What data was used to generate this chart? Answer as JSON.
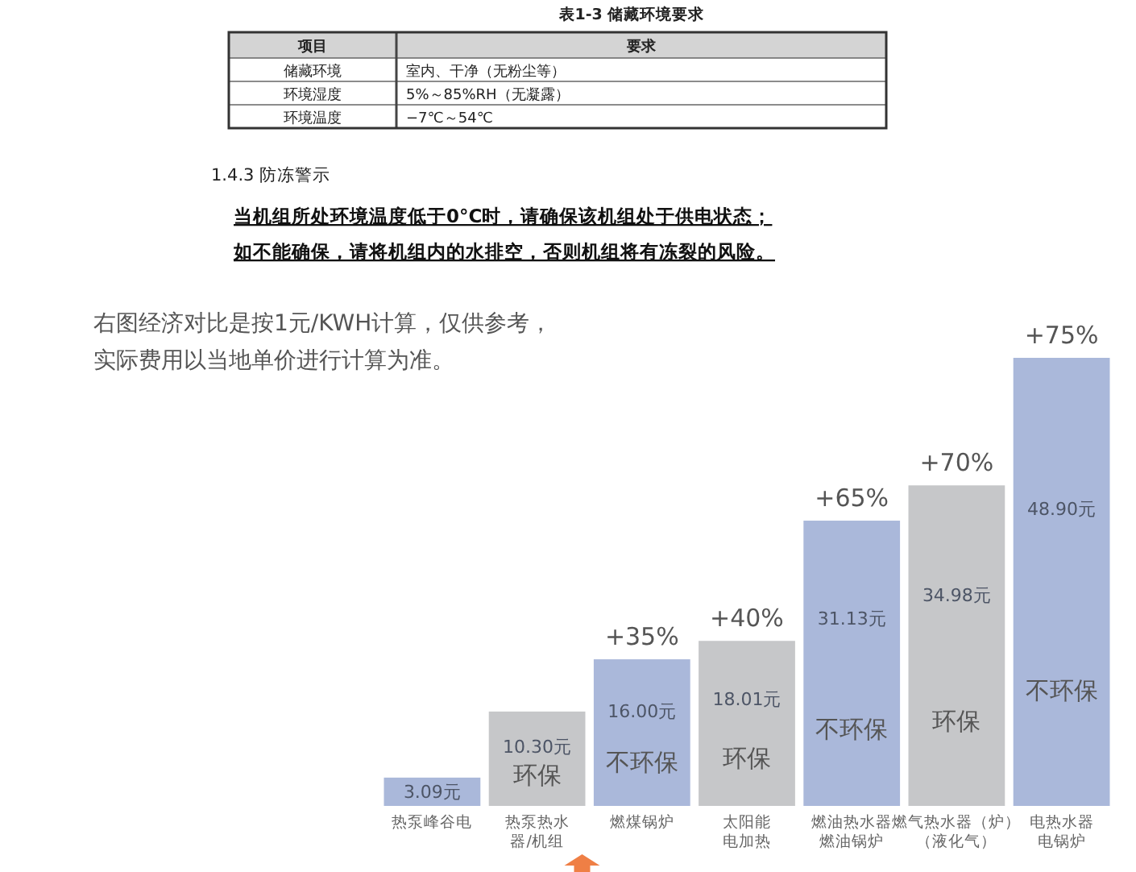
{
  "chart_data": [
    {
      "type": "other",
      "title": "表1-3 储藏环境要求",
      "categories": [
        "项目",
        "要求"
      ],
      "annotations": [
        "储藏环境",
        "室内、干净（无粉尘等）",
        "环境湿度",
        "5%～85%RH（无凝露）",
        "环境温度",
        "−7℃～54℃"
      ]
    },
    {
      "type": "other",
      "title": "1.4.3 防冻警示",
      "annotations": [
        "当机组所处环境温度低于0°C时，请确保该机组处于供电状态；",
        "如不能确保，请将机组内的水排空，否则机组将有冻裂的风险。"
      ]
    },
    {
      "type": "bar",
      "categories": [
        "热泵峰谷电",
        "热泵热水器/机组",
        "燃煤锅炉",
        "太阳能电加热",
        "燃油热水器燃油锅炉",
        "燃气热水器（炉）（液化气）",
        "电热水器电锅炉"
      ],
      "values": [
        3.09,
        10.3,
        16.0,
        18.01,
        31.13,
        34.98,
        48.9
      ],
      "value_labels": [
        "3.09元",
        "10.30元",
        "16.00元",
        "18.01元",
        "31.13元",
        "34.98元",
        "48.90元"
      ],
      "colors": [
        "#aab8da",
        "#c6c7c9",
        "#aab8da",
        "#c6c7c9",
        "#aab8da",
        "#c6c7c9",
        "#aab8da"
      ],
      "tick_labels": "x",
      "annotations": [
        "右图经济对比是按1元/KWH计算，仅供参考，实际费用以当地单价进行计算为准。",
        {
          "text": "+35%",
          "x": "燃煤锅炉",
          "y": 16.0
        },
        {
          "text": "+40%",
          "x": "太阳能电加热",
          "y": 18.01
        },
        {
          "text": "+65%",
          "x": "燃油热水器燃油锅炉",
          "y": 31.13
        },
        {
          "text": "+70%",
          "x": "燃气热水器（炉）（液化气）",
          "y": 34.98
        },
        {
          "text": "+75%",
          "x": "电热水器电锅炉",
          "y": 48.9
        },
        "环保",
        "不环保",
        "环保",
        "不环保",
        "环保",
        "不环保"
      ]
    }
  ]
}
